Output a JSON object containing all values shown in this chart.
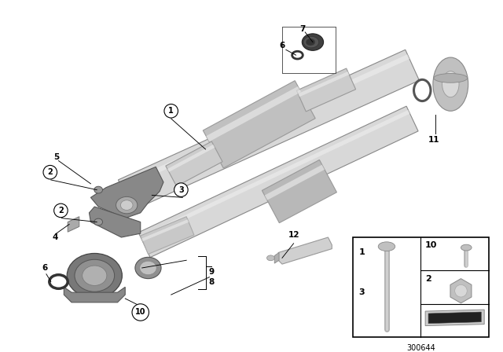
{
  "bg_color": "#ffffff",
  "part_number": "300644",
  "fig_width": 6.4,
  "fig_height": 4.48,
  "dpi": 100,
  "shaft_color": "#d8d8d8",
  "shaft_mid": "#c0c0c0",
  "shaft_dark": "#a8a8a8",
  "yoke_color": "#888888",
  "bearing_color": "#808080",
  "dark_part": "#606060",
  "text_color": "#000000"
}
